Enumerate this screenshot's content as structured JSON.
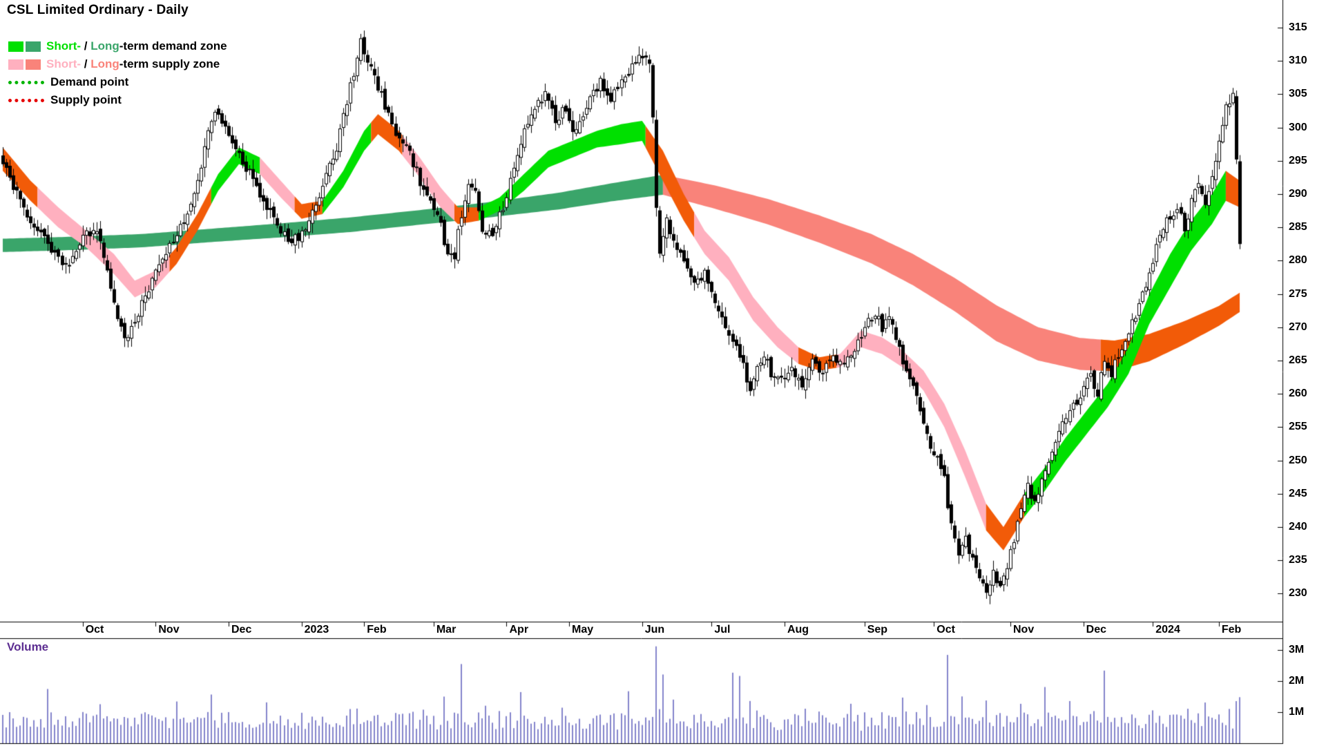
{
  "title": "CSL Limited Ordinary - Daily",
  "legend": {
    "demand": {
      "short": "Short-",
      "sep": " / ",
      "long": "Long",
      "rest": "-term demand zone"
    },
    "supply": {
      "short": "Short-",
      "sep": " / ",
      "long": "Long",
      "rest": "-term supply zone"
    },
    "demand_point": "Demand point",
    "supply_point": "Supply point"
  },
  "price_axis": {
    "ticks": [
      315,
      310,
      305,
      300,
      295,
      290,
      285,
      280,
      275,
      270,
      265,
      260,
      255,
      250,
      245,
      240,
      235,
      230
    ]
  },
  "time_axis": {
    "labels": [
      {
        "label": "Oct",
        "day": 23
      },
      {
        "label": "Nov",
        "day": 44
      },
      {
        "label": "Dec",
        "day": 65
      },
      {
        "label": "2023",
        "day": 86
      },
      {
        "label": "Feb",
        "day": 104
      },
      {
        "label": "Mar",
        "day": 124
      },
      {
        "label": "Apr",
        "day": 145
      },
      {
        "label": "May",
        "day": 163
      },
      {
        "label": "Jun",
        "day": 184
      },
      {
        "label": "Jul",
        "day": 204
      },
      {
        "label": "Aug",
        "day": 225
      },
      {
        "label": "Sep",
        "day": 248
      },
      {
        "label": "Oct",
        "day": 268
      },
      {
        "label": "Nov",
        "day": 290
      },
      {
        "label": "Dec",
        "day": 311
      },
      {
        "label": "2024",
        "day": 331
      },
      {
        "label": "Feb",
        "day": 350
      }
    ]
  },
  "volume_panel": {
    "label": "Volume",
    "ticks": [
      {
        "label": "3M",
        "value": 3
      },
      {
        "label": "2M",
        "value": 2
      },
      {
        "label": "1M",
        "value": 1
      }
    ]
  },
  "colors": {
    "short_demand": "#00e000",
    "long_demand": "#3aa56a",
    "short_supply": "#ffb0bf",
    "long_supply": "#f9837a",
    "cross": "#f25b08",
    "candle_up": "#ffffff",
    "candle_down": "#000000",
    "candle_line": "#000000",
    "volume_bar": "#8484cc",
    "volume_label": "#5c2d91",
    "demand_point": "#00b400",
    "supply_point": "#e60000",
    "axis_line": "#000000"
  },
  "chart_data": {
    "type": "candlestick",
    "title": "CSL Limited Ordinary - Daily",
    "interval": "Daily",
    "panels": [
      "price",
      "volume"
    ],
    "price_axis_range": [
      226,
      317
    ],
    "volume_axis_max_millions": 3,
    "days_total": 357,
    "seed": 9,
    "price_path_keyframes": [
      [
        0,
        295
      ],
      [
        3,
        291
      ],
      [
        6,
        288
      ],
      [
        9,
        285
      ],
      [
        12,
        283
      ],
      [
        15,
        281
      ],
      [
        18,
        279
      ],
      [
        21,
        282
      ],
      [
        24,
        284
      ],
      [
        27,
        285
      ],
      [
        29,
        280
      ],
      [
        31,
        276
      ],
      [
        33,
        271
      ],
      [
        35,
        268
      ],
      [
        38,
        271
      ],
      [
        41,
        275
      ],
      [
        44,
        278
      ],
      [
        47,
        281
      ],
      [
        50,
        284
      ],
      [
        53,
        287
      ],
      [
        56,
        292
      ],
      [
        59,
        299
      ],
      [
        61,
        303
      ],
      [
        64,
        300
      ],
      [
        67,
        297
      ],
      [
        70,
        294
      ],
      [
        73,
        291
      ],
      [
        76,
        288
      ],
      [
        79,
        285
      ],
      [
        82,
        283
      ],
      [
        86,
        284
      ],
      [
        89,
        287
      ],
      [
        92,
        291
      ],
      [
        96,
        297
      ],
      [
        99,
        304
      ],
      [
        101,
        308
      ],
      [
        103,
        313
      ],
      [
        105,
        310
      ],
      [
        108,
        306
      ],
      [
        111,
        302
      ],
      [
        114,
        298
      ],
      [
        117,
        296
      ],
      [
        120,
        292
      ],
      [
        123,
        289
      ],
      [
        126,
        285
      ],
      [
        128,
        281
      ],
      [
        130,
        281
      ],
      [
        132,
        287
      ],
      [
        134,
        292
      ],
      [
        136,
        290
      ],
      [
        138,
        285
      ],
      [
        141,
        284
      ],
      [
        144,
        288
      ],
      [
        147,
        294
      ],
      [
        150,
        300
      ],
      [
        153,
        303
      ],
      [
        156,
        305
      ],
      [
        159,
        301
      ],
      [
        162,
        303
      ],
      [
        164,
        299
      ],
      [
        166,
        301
      ],
      [
        169,
        304
      ],
      [
        172,
        307
      ],
      [
        175,
        304
      ],
      [
        178,
        307
      ],
      [
        181,
        309
      ],
      [
        184,
        311
      ],
      [
        186,
        309
      ],
      [
        187,
        302
      ],
      [
        188,
        288
      ],
      [
        189,
        281
      ],
      [
        191,
        286
      ],
      [
        193,
        283
      ],
      [
        196,
        280
      ],
      [
        199,
        277
      ],
      [
        202,
        278
      ],
      [
        204,
        275
      ],
      [
        207,
        271
      ],
      [
        210,
        268
      ],
      [
        213,
        264
      ],
      [
        215,
        261
      ],
      [
        217,
        264
      ],
      [
        219,
        266
      ],
      [
        221,
        263
      ],
      [
        224,
        262
      ],
      [
        227,
        264
      ],
      [
        230,
        261
      ],
      [
        233,
        265
      ],
      [
        236,
        263
      ],
      [
        239,
        266
      ],
      [
        242,
        264
      ],
      [
        245,
        267
      ],
      [
        248,
        270
      ],
      [
        251,
        272
      ],
      [
        253,
        270
      ],
      [
        255,
        272
      ],
      [
        257,
        268
      ],
      [
        259,
        265
      ],
      [
        261,
        262
      ],
      [
        263,
        259
      ],
      [
        265,
        255
      ],
      [
        267,
        252
      ],
      [
        269,
        250
      ],
      [
        271,
        247
      ],
      [
        273,
        240
      ],
      [
        275,
        236
      ],
      [
        277,
        238
      ],
      [
        279,
        235
      ],
      [
        281,
        233
      ],
      [
        283,
        230
      ],
      [
        285,
        233
      ],
      [
        287,
        231
      ],
      [
        289,
        234
      ],
      [
        291,
        238
      ],
      [
        293,
        243
      ],
      [
        295,
        246
      ],
      [
        297,
        244
      ],
      [
        299,
        247
      ],
      [
        301,
        250
      ],
      [
        303,
        253
      ],
      [
        305,
        256
      ],
      [
        307,
        258
      ],
      [
        309,
        259
      ],
      [
        311,
        261
      ],
      [
        313,
        263
      ],
      [
        315,
        260
      ],
      [
        317,
        265
      ],
      [
        319,
        263
      ],
      [
        321,
        266
      ],
      [
        323,
        268
      ],
      [
        326,
        272
      ],
      [
        329,
        276
      ],
      [
        332,
        282
      ],
      [
        335,
        286
      ],
      [
        338,
        288
      ],
      [
        340,
        285
      ],
      [
        342,
        289
      ],
      [
        344,
        292
      ],
      [
        346,
        289
      ],
      [
        348,
        293
      ],
      [
        350,
        298
      ],
      [
        352,
        303
      ],
      [
        354,
        305
      ],
      [
        355,
        295
      ],
      [
        356,
        282
      ]
    ],
    "ribbons": {
      "short": {
        "points": [
          [
            0,
            297,
            293.5
          ],
          [
            8,
            292,
            289
          ],
          [
            16,
            288,
            285
          ],
          [
            24,
            284.5,
            282
          ],
          [
            32,
            281,
            278
          ],
          [
            38,
            277,
            274.5
          ],
          [
            44,
            278.5,
            276
          ],
          [
            50,
            282,
            279.5
          ],
          [
            56,
            287,
            284.5
          ],
          [
            62,
            293,
            290.5
          ],
          [
            68,
            297,
            294.5
          ],
          [
            74,
            295.5,
            293
          ],
          [
            80,
            292,
            289.5
          ],
          [
            86,
            288.5,
            286.3
          ],
          [
            92,
            289,
            287
          ],
          [
            98,
            293.5,
            291
          ],
          [
            104,
            299.5,
            296.5
          ],
          [
            108,
            302,
            299
          ],
          [
            114,
            299.5,
            296.5
          ],
          [
            120,
            295.5,
            292.5
          ],
          [
            126,
            291,
            288
          ],
          [
            131,
            288,
            285.5
          ],
          [
            137,
            288,
            286
          ],
          [
            143,
            289.5,
            287.5
          ],
          [
            150,
            293,
            290.5
          ],
          [
            157,
            296.5,
            294
          ],
          [
            164,
            298,
            295.5
          ],
          [
            171,
            299.5,
            297
          ],
          [
            178,
            300.5,
            297.5
          ],
          [
            184,
            301,
            298
          ],
          [
            190,
            296.5,
            292
          ],
          [
            196,
            290,
            286
          ],
          [
            202,
            284.5,
            281
          ],
          [
            209,
            280.5,
            277
          ],
          [
            216,
            274.5,
            271
          ],
          [
            223,
            270,
            267
          ],
          [
            229,
            267,
            264.5
          ],
          [
            235,
            265.5,
            263.5
          ],
          [
            241,
            266,
            264
          ],
          [
            247,
            269.5,
            267
          ],
          [
            253,
            268.5,
            266
          ],
          [
            259,
            266.5,
            264
          ],
          [
            265,
            263.5,
            260.5
          ],
          [
            271,
            258.5,
            255
          ],
          [
            277,
            251.5,
            247.5
          ],
          [
            283,
            243.5,
            239.5
          ],
          [
            288,
            240,
            236.5
          ],
          [
            294,
            245,
            241.5
          ],
          [
            300,
            249,
            245.5
          ],
          [
            306,
            253.5,
            250
          ],
          [
            312,
            257.5,
            254
          ],
          [
            318,
            261.5,
            258
          ],
          [
            324,
            267,
            263
          ],
          [
            330,
            275,
            270.5
          ],
          [
            336,
            281,
            276
          ],
          [
            342,
            286,
            281.5
          ],
          [
            348,
            290,
            285.5
          ],
          [
            352,
            293.5,
            289
          ],
          [
            356,
            292,
            288
          ]
        ],
        "segments": [
          [
            0,
            10,
            "orange"
          ],
          [
            10,
            48,
            "pink"
          ],
          [
            48,
            60,
            "orange"
          ],
          [
            60,
            74,
            "green"
          ],
          [
            74,
            84,
            "pink"
          ],
          [
            84,
            92,
            "orange"
          ],
          [
            92,
            106,
            "green"
          ],
          [
            106,
            115,
            "orange"
          ],
          [
            115,
            130,
            "pink"
          ],
          [
            130,
            137,
            "orange"
          ],
          [
            137,
            185,
            "green"
          ],
          [
            185,
            199,
            "orange"
          ],
          [
            199,
            229,
            "pink"
          ],
          [
            229,
            240,
            "orange"
          ],
          [
            240,
            283,
            "pink"
          ],
          [
            283,
            294,
            "orange"
          ],
          [
            294,
            352,
            "green"
          ],
          [
            352,
            356,
            "orange"
          ]
        ]
      },
      "long": {
        "points": [
          [
            0,
            283.3,
            281.3
          ],
          [
            20,
            283.6,
            281.6
          ],
          [
            40,
            284,
            282
          ],
          [
            60,
            284.8,
            282.8
          ],
          [
            80,
            285.6,
            283.5
          ],
          [
            100,
            286.5,
            284.3
          ],
          [
            120,
            287.6,
            285.4
          ],
          [
            140,
            288.8,
            286.5
          ],
          [
            160,
            290.2,
            287.7
          ],
          [
            175,
            291.6,
            288.9
          ],
          [
            190,
            292.9,
            289.9
          ],
          [
            205,
            291.3,
            287.8
          ],
          [
            220,
            289.3,
            285.5
          ],
          [
            235,
            286.8,
            282.7
          ],
          [
            250,
            284,
            279.6
          ],
          [
            262,
            281,
            276.3
          ],
          [
            274,
            277.4,
            272.4
          ],
          [
            286,
            273.3,
            267.9
          ],
          [
            298,
            270,
            265
          ],
          [
            310,
            268.4,
            263.6
          ],
          [
            320,
            268,
            263.4
          ],
          [
            330,
            269,
            264.9
          ],
          [
            340,
            270.9,
            267.4
          ],
          [
            350,
            273.2,
            270.2
          ],
          [
            356,
            275.2,
            272.3
          ]
        ],
        "segments": [
          [
            0,
            190,
            "seagreen"
          ],
          [
            190,
            316,
            "salmon"
          ],
          [
            316,
            356,
            "orange"
          ]
        ]
      }
    },
    "volume_spikes_millions": [
      [
        13,
        1.65
      ],
      [
        28,
        1.2
      ],
      [
        50,
        1.3
      ],
      [
        60,
        1.5
      ],
      [
        76,
        1.25
      ],
      [
        102,
        1.1
      ],
      [
        121,
        1.0
      ],
      [
        127,
        1.5
      ],
      [
        132,
        2.45
      ],
      [
        139,
        1.2
      ],
      [
        149,
        1.55
      ],
      [
        161,
        1.1
      ],
      [
        180,
        1.6
      ],
      [
        188,
        3.0
      ],
      [
        190,
        2.2
      ],
      [
        193,
        1.35
      ],
      [
        210,
        2.2
      ],
      [
        212,
        2.05
      ],
      [
        215,
        1.3
      ],
      [
        231,
        1.05
      ],
      [
        244,
        1.2
      ],
      [
        259,
        1.4
      ],
      [
        266,
        1.15
      ],
      [
        272,
        2.8
      ],
      [
        276,
        1.5
      ],
      [
        283,
        1.3
      ],
      [
        293,
        1.2
      ],
      [
        300,
        1.7
      ],
      [
        307,
        1.25
      ],
      [
        317,
        2.3
      ],
      [
        331,
        1.0
      ],
      [
        341,
        1.05
      ],
      [
        346,
        1.2
      ],
      [
        353,
        1.1
      ],
      [
        356,
        1.45
      ]
    ]
  }
}
